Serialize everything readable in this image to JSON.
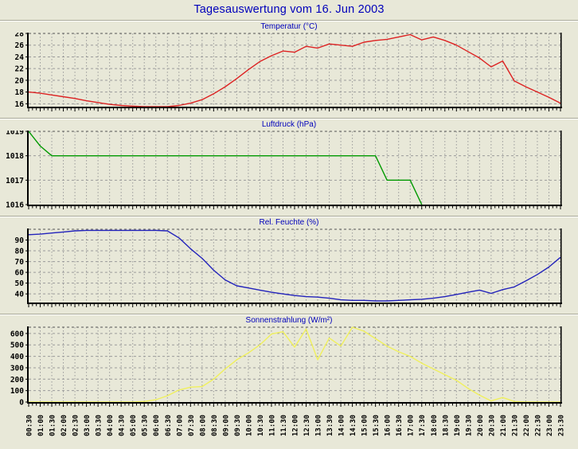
{
  "page": {
    "title": "Tagesauswertung vom 16. Jun 2003",
    "background": "#e8e8d8",
    "title_color": "#0000bb",
    "grid_color": "#9a9a9a",
    "axis_color": "#000000"
  },
  "x_axis": {
    "labels": [
      "00:30",
      "01:00",
      "01:30",
      "02:00",
      "02:30",
      "03:00",
      "03:30",
      "04:00",
      "04:30",
      "05:00",
      "05:30",
      "06:00",
      "06:30",
      "07:00",
      "07:30",
      "08:00",
      "08:30",
      "09:00",
      "09:30",
      "10:00",
      "10:30",
      "11:00",
      "11:30",
      "12:00",
      "12:30",
      "13:00",
      "13:30",
      "14:00",
      "14:30",
      "15:00",
      "15:30",
      "16:00",
      "16:30",
      "17:00",
      "17:30",
      "18:00",
      "18:30",
      "19:00",
      "19:30",
      "20:00",
      "20:30",
      "21:00",
      "21:30",
      "22:00",
      "22:30",
      "23:00",
      "23:30"
    ]
  },
  "chart_data": [
    {
      "type": "line",
      "title": "Temperatur (°C)",
      "color": "#dd2222",
      "ylim": [
        15.5,
        28
      ],
      "yticks": [
        16,
        18,
        20,
        22,
        24,
        26,
        28
      ],
      "grid": true,
      "legend_position": "none",
      "values": [
        18.0,
        17.8,
        17.5,
        17.2,
        16.9,
        16.5,
        16.2,
        15.9,
        15.7,
        15.6,
        15.5,
        15.4,
        15.5,
        15.7,
        16.1,
        16.7,
        17.7,
        18.9,
        20.3,
        21.8,
        23.2,
        24.2,
        25.0,
        24.8,
        25.8,
        25.5,
        26.2,
        26.0,
        25.8,
        26.5,
        26.8,
        27.0,
        27.4,
        27.8,
        26.9,
        27.4,
        26.8,
        26.0,
        24.9,
        23.8,
        22.3,
        23.3,
        19.9,
        18.9,
        18.0,
        17.1,
        16.1
      ]
    },
    {
      "type": "line",
      "title": "Luftdruck (hPa)",
      "color": "#009900",
      "ylim": [
        1016,
        1019
      ],
      "yticks": [
        1016,
        1017,
        1018,
        1019
      ],
      "grid": true,
      "legend_position": "none",
      "values": [
        1019,
        1018.4,
        1018,
        1018,
        1018,
        1018,
        1018,
        1018,
        1018,
        1018,
        1018,
        1018,
        1018,
        1018,
        1018,
        1018,
        1018,
        1018,
        1018,
        1018,
        1018,
        1018,
        1018,
        1018,
        1018,
        1018,
        1018,
        1018,
        1018,
        1018,
        1018,
        1017,
        1017,
        1017,
        1016,
        null,
        null,
        null,
        null,
        null,
        null,
        null,
        null,
        null,
        null,
        null,
        null
      ]
    },
    {
      "type": "line",
      "title": "Rel. Feuchte (%)",
      "color": "#2222bb",
      "ylim": [
        32,
        100
      ],
      "yticks": [
        40,
        50,
        60,
        70,
        80,
        90
      ],
      "grid": true,
      "legend_position": "none",
      "values": [
        95,
        95.5,
        96.5,
        97.5,
        98.5,
        99,
        99,
        99,
        99,
        99,
        99,
        99,
        98.5,
        92,
        82,
        73,
        62,
        53,
        47.5,
        45.5,
        43.5,
        41.5,
        40,
        38.5,
        37.5,
        37,
        36,
        34.5,
        34,
        34,
        33.5,
        33.5,
        34,
        34.5,
        35,
        36,
        37.5,
        39.5,
        41.5,
        43.5,
        40.5,
        44,
        46.5,
        52,
        58,
        65,
        74
      ]
    },
    {
      "type": "line",
      "title": "Sonnenstrahlung (W/m²)",
      "color": "#f0f05c",
      "ylim": [
        0,
        655
      ],
      "yticks": [
        0,
        100,
        200,
        300,
        400,
        500,
        600
      ],
      "grid": true,
      "legend_position": "none",
      "values": [
        0,
        0,
        0,
        0,
        0,
        0,
        0,
        0,
        0,
        0,
        5,
        20,
        55,
        105,
        130,
        135,
        200,
        290,
        370,
        430,
        500,
        595,
        615,
        480,
        640,
        370,
        560,
        490,
        655,
        620,
        555,
        490,
        440,
        400,
        340,
        290,
        240,
        190,
        120,
        60,
        10,
        40,
        5,
        0,
        0,
        0,
        0
      ]
    }
  ]
}
